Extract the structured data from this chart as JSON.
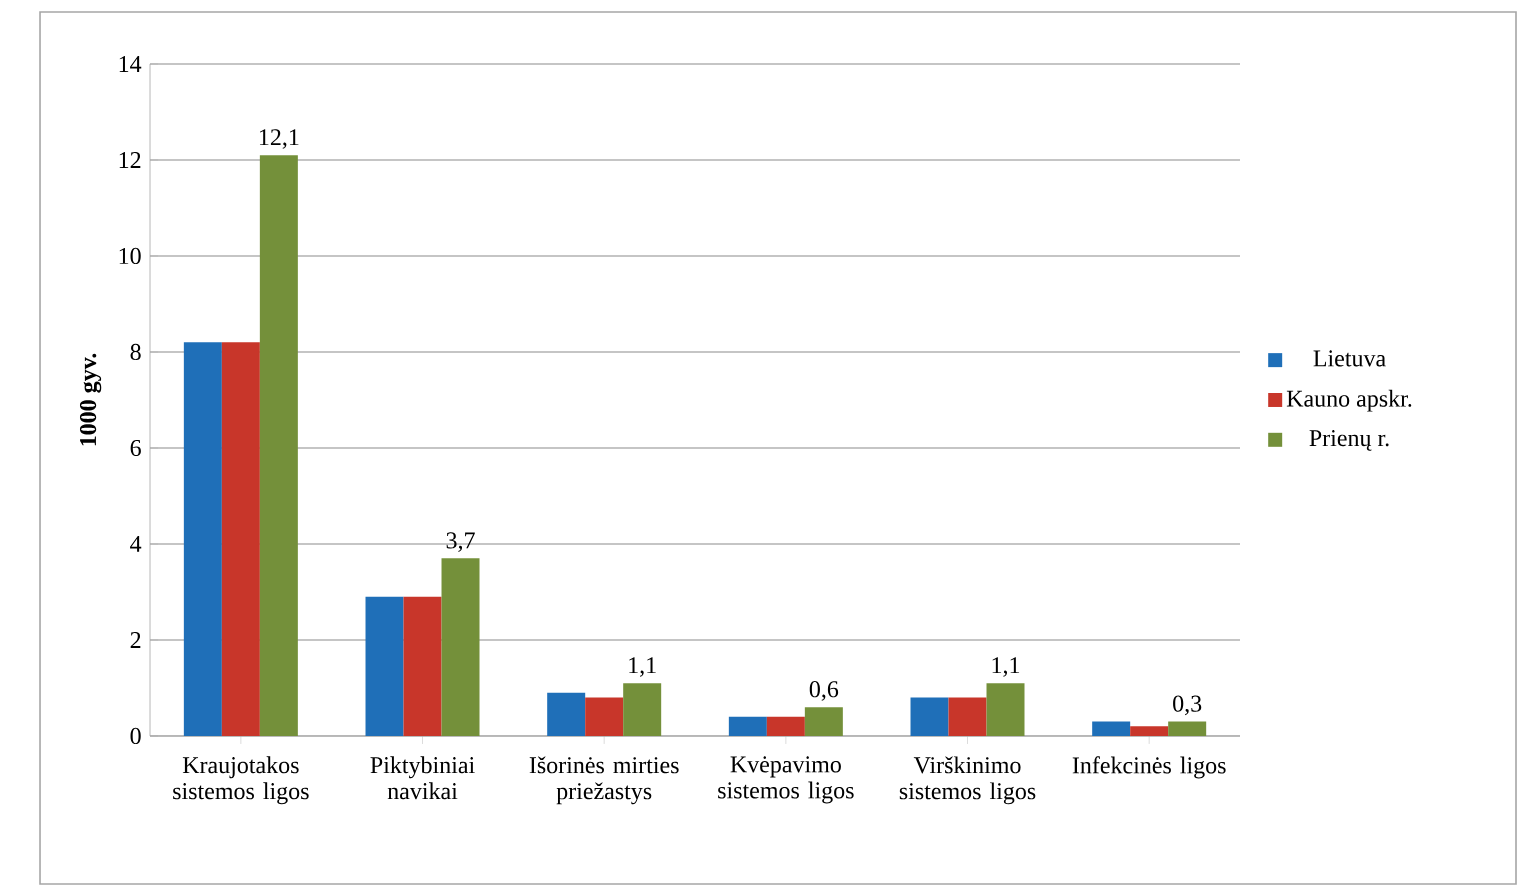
{
  "chart_data": {
    "type": "bar",
    "ylabel": "1000 gyv.",
    "categories": [
      "Kraujotakos sistemos ligos",
      "Piktybiniai navikai",
      "Išorinės mirties priežastys",
      "Kvėpavimo sistemos ligos",
      "Virškinimo sistemos ligos",
      "Infekcinės ligos"
    ],
    "series": [
      {
        "name": "Lietuva",
        "color": "#1f6fb8",
        "values": [
          8.2,
          2.9,
          0.9,
          0.4,
          0.8,
          0.3
        ]
      },
      {
        "name": "Kauno apskr.",
        "color": "#c8362a",
        "values": [
          8.2,
          2.9,
          0.8,
          0.4,
          0.8,
          0.2
        ]
      },
      {
        "name": "Prienų r.",
        "color": "#74903a",
        "values": [
          12.1,
          3.7,
          1.1,
          0.6,
          1.1,
          0.3
        ],
        "value_labels": [
          "12,1",
          "3,7",
          "1,1",
          "0,6",
          "1,1",
          "0,3"
        ]
      }
    ],
    "ylim": [
      0,
      14
    ],
    "yticks": [
      0,
      2,
      4,
      6,
      8,
      10,
      12,
      14
    ],
    "grid": "y",
    "legend": "right"
  }
}
